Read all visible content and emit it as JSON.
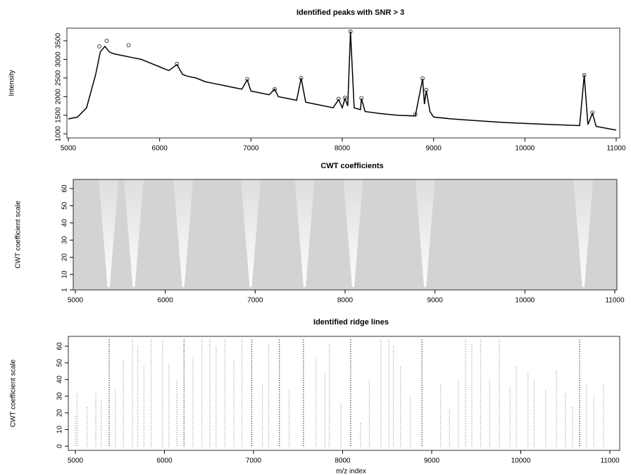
{
  "chart_data": [
    {
      "type": "line",
      "title": "Identified peaks with SNR > 3",
      "y_label": "Intensity",
      "xlim": [
        5000,
        11000
      ],
      "ylim": [
        890,
        3840
      ],
      "xticks": [
        5000,
        6000,
        7000,
        8000,
        9000,
        10000,
        11000
      ],
      "yticks": [
        1000,
        1500,
        2000,
        2500,
        3000,
        3500
      ],
      "series": [
        {
          "color": "#000000",
          "marker": "line",
          "x": [
            5000,
            5100,
            5200,
            5300,
            5350,
            5400,
            5450,
            5500,
            5600,
            5700,
            5800,
            5900,
            6000,
            6100,
            6190,
            6250,
            6300,
            6400,
            6500,
            6600,
            6700,
            6800,
            6900,
            6960,
            7000,
            7100,
            7200,
            7260,
            7300,
            7400,
            7500,
            7550,
            7600,
            7700,
            7800,
            7900,
            7960,
            8000,
            8030,
            8060,
            8090,
            8130,
            8200,
            8210,
            8250,
            8400,
            8600,
            8800,
            8880,
            8900,
            8920,
            8960,
            9000,
            9200,
            9500,
            9800,
            10000,
            10300,
            10600,
            10650,
            10690,
            10740,
            10780,
            11000
          ],
          "values": [
            1400,
            1450,
            1700,
            2600,
            3200,
            3350,
            3200,
            3150,
            3100,
            3050,
            3000,
            2900,
            2800,
            2700,
            2860,
            2600,
            2550,
            2500,
            2400,
            2350,
            2300,
            2250,
            2200,
            2450,
            2150,
            2100,
            2050,
            2200,
            2000,
            1950,
            1900,
            2500,
            1850,
            1800,
            1750,
            1700,
            1920,
            1700,
            1950,
            1750,
            3750,
            1700,
            1650,
            1950,
            1600,
            1550,
            1500,
            1480,
            2480,
            1800,
            2160,
            1600,
            1450,
            1400,
            1350,
            1300,
            1280,
            1250,
            1220,
            2580,
            1250,
            1550,
            1200,
            1100
          ]
        },
        {
          "color": "#000000",
          "marker": "circle",
          "x": [
            5340,
            5420,
            5660,
            6190,
            6960,
            7260,
            7550,
            7960,
            8030,
            8090,
            8210,
            8800,
            8880,
            8920,
            10650,
            10740
          ],
          "values": [
            3350,
            3500,
            3380,
            2880,
            2470,
            2200,
            2500,
            1940,
            1970,
            3750,
            1960,
            1520,
            2490,
            2180,
            2580,
            1570
          ]
        }
      ]
    },
    {
      "type": "heatmap",
      "title": "CWT coefficients",
      "y_label": "CWT coefficient scale",
      "xlim": [
        5000,
        11000
      ],
      "ylim": [
        1,
        65.3
      ],
      "xticks": [
        5000,
        6000,
        7000,
        8000,
        9000,
        10000,
        11000
      ],
      "yticks": [
        1,
        10,
        20,
        30,
        40,
        50,
        60
      ],
      "color": "#d3d3d3",
      "x": [
        5370,
        5650,
        6200,
        6950,
        7550,
        8090,
        8890,
        10650
      ]
    },
    {
      "type": "scatter",
      "title": "Identified ridge lines",
      "y_label": "CWT coefficient scale",
      "x_label": "m/z index",
      "xlim": [
        5000,
        11000
      ],
      "ylim": [
        -2.5,
        65.9
      ],
      "xticks": [
        5000,
        6000,
        7000,
        8000,
        9000,
        10000,
        11000
      ],
      "yticks": [
        0,
        10,
        20,
        30,
        40,
        50,
        60
      ],
      "series": [
        {
          "color": "#9a9a9a",
          "x": [
            5000,
            5020,
            5130,
            5230,
            5290,
            5450,
            5540,
            5640,
            5700,
            5770,
            5850,
            5980,
            6050,
            6140,
            6320,
            6420,
            6510,
            6580,
            6680,
            6780,
            6870,
            7100,
            7170,
            7400,
            7700,
            7800,
            7850,
            7980,
            8200,
            8300,
            8430,
            8520,
            8570,
            8650,
            8760,
            9100,
            9200,
            9300,
            9380,
            9450,
            9550,
            9650,
            9760,
            9880,
            9950,
            10080,
            10150,
            10280,
            10400,
            10500,
            10580,
            10740,
            10820,
            10930
          ],
          "values": [
            18,
            32,
            24,
            32,
            28,
            34,
            52,
            64,
            60,
            48,
            64,
            64,
            50,
            40,
            54,
            64,
            64,
            60,
            64,
            52,
            64,
            38,
            62,
            34,
            54,
            44,
            62,
            26,
            14,
            40,
            64,
            64,
            60,
            48,
            30,
            38,
            22,
            40,
            64,
            62,
            64,
            40,
            64,
            36,
            48,
            44,
            40,
            34,
            46,
            32,
            24,
            38,
            30,
            38
          ]
        },
        {
          "color": "#222222",
          "x": [
            5380,
            6220,
            6980,
            7290,
            7560,
            8090,
            8890,
            10660
          ],
          "values": [
            64,
            64,
            64,
            64,
            64,
            64,
            64,
            64
          ]
        }
      ]
    }
  ]
}
